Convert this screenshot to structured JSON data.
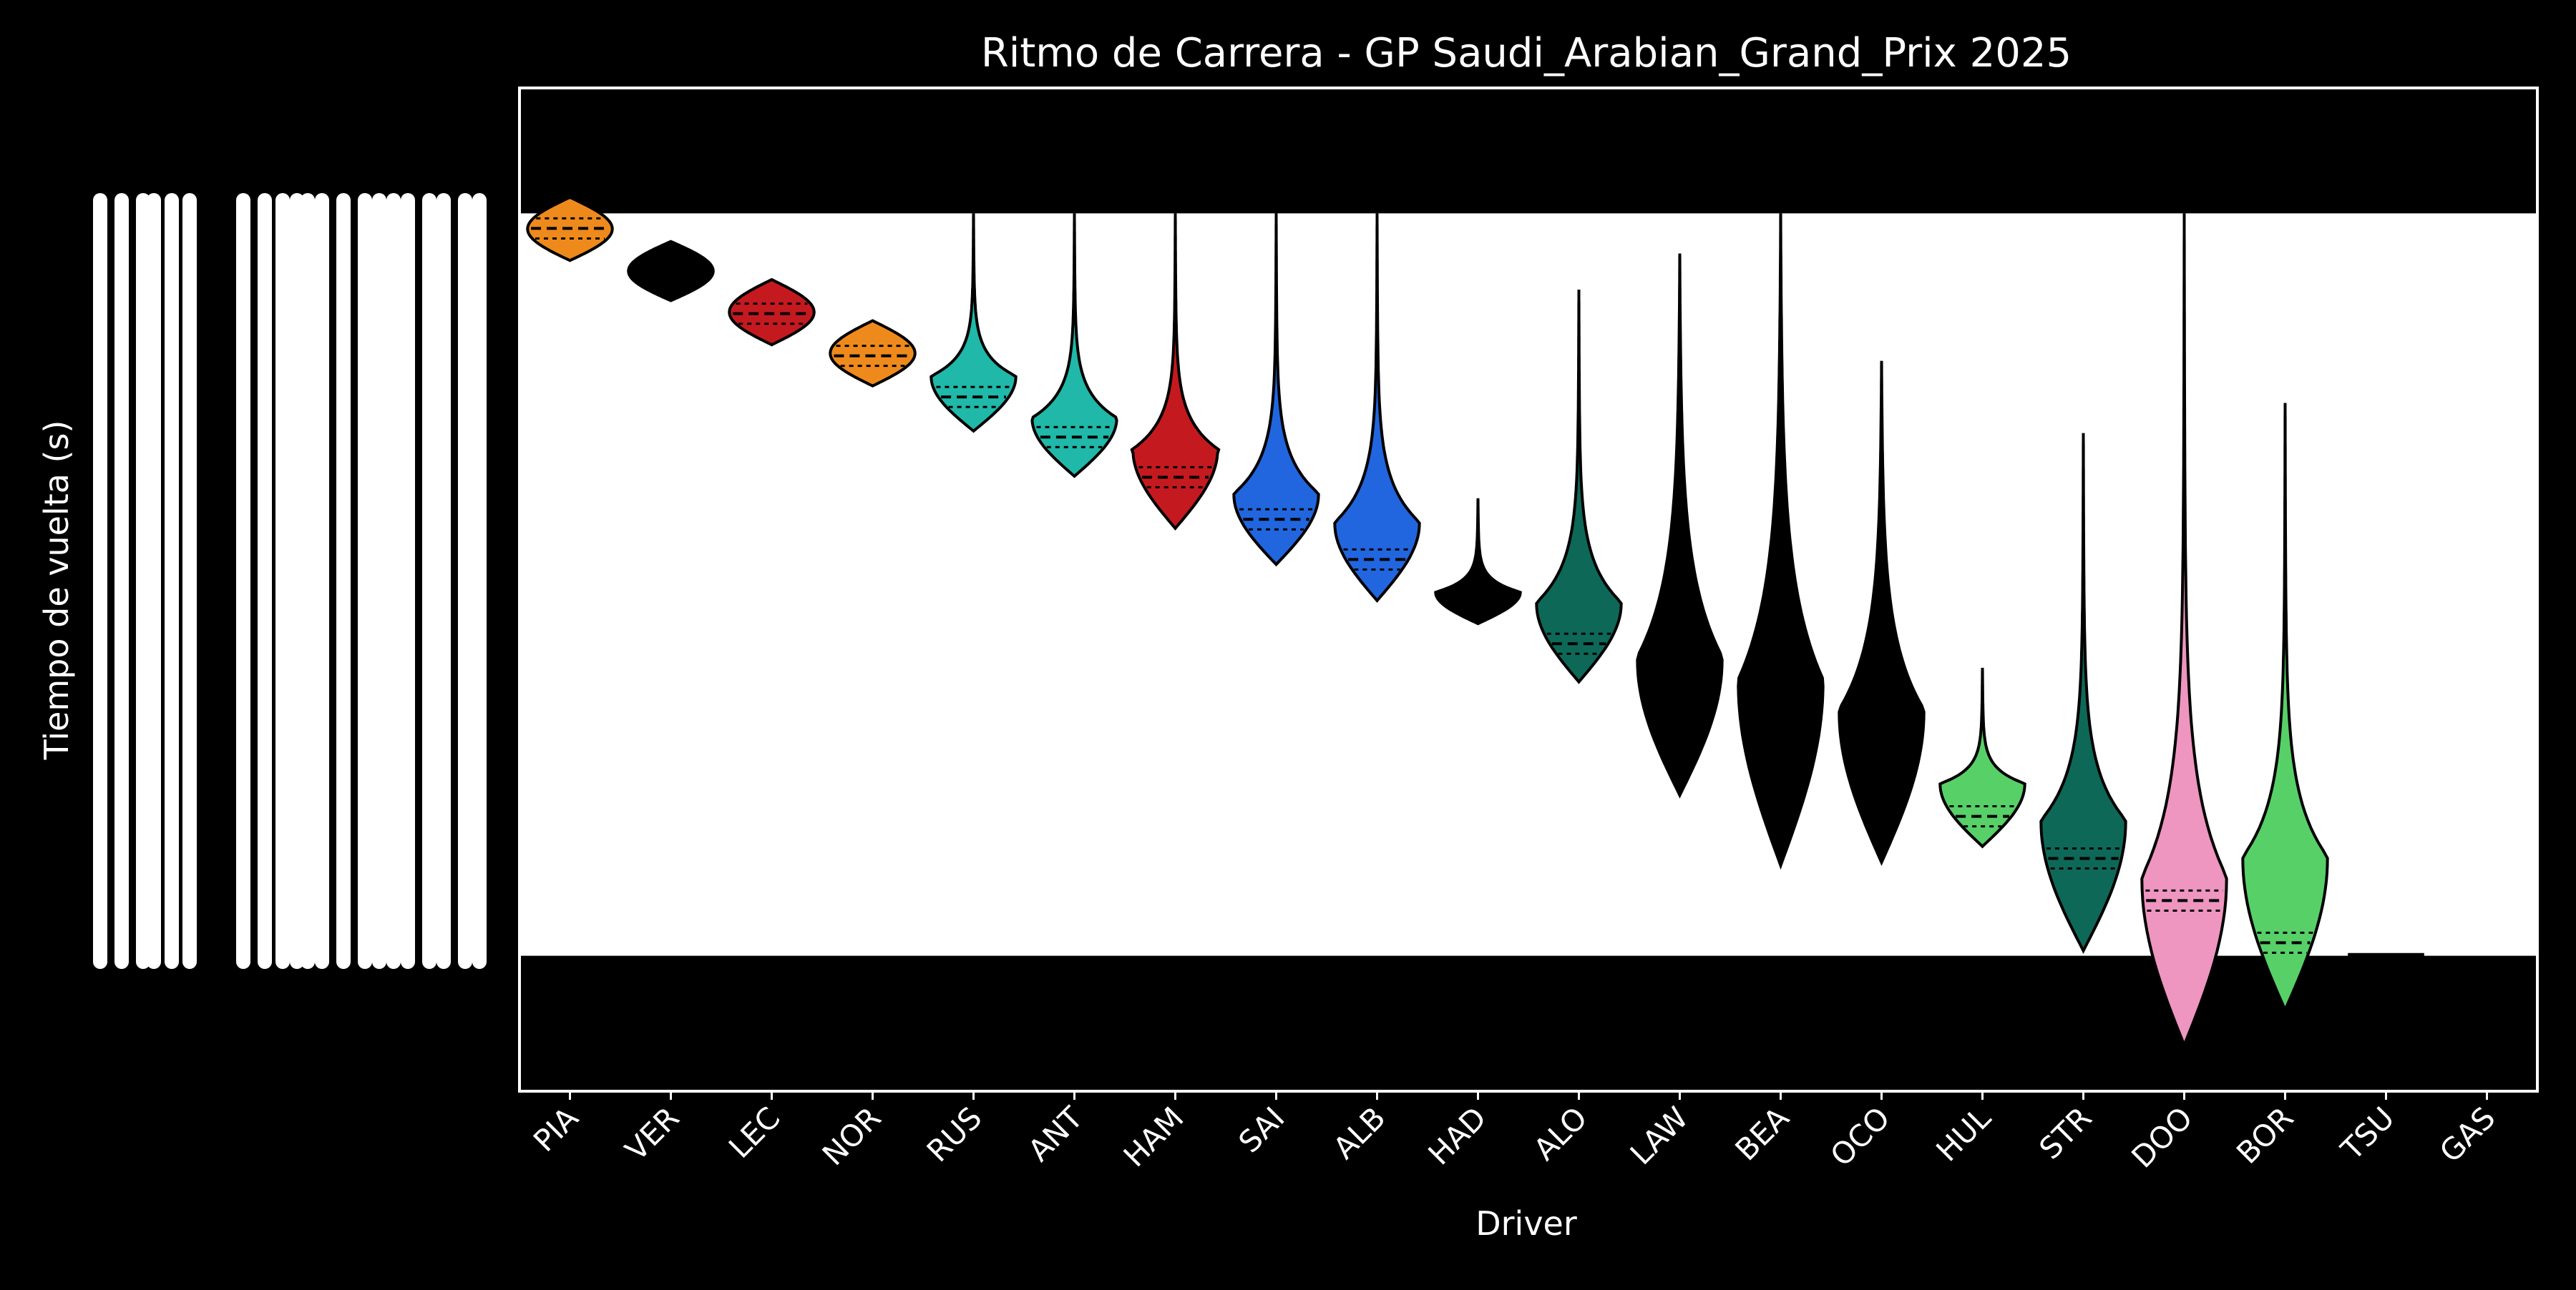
{
  "chart_data": {
    "type": "violin",
    "title": "Ritmo de Carrera - GP Saudi_Arabian_Grand_Prix 2025",
    "xlabel": "Driver",
    "ylabel": "Tiempo de vuelta (s)",
    "categories": [
      "PIA",
      "VER",
      "LEC",
      "NOR",
      "RUS",
      "ANT",
      "HAM",
      "SAI",
      "ALB",
      "HAD",
      "ALO",
      "LAW",
      "BEA",
      "OCO",
      "HUL",
      "STR",
      "DOO",
      "BOR",
      "TSU",
      "GAS"
    ],
    "ylim": [
      0,
      100
    ],
    "grid": false,
    "legend": "none",
    "white_band": [
      13.5,
      87.5
    ],
    "tick_labels_note": "y-axis tick labels are illegible (overprinted)",
    "series": [
      {
        "driver": "PIA",
        "color": "#ee8a1c",
        "center": 86.0,
        "low": 82.8,
        "high": 89.1,
        "peak": 0.55,
        "mode": 0.5,
        "tail": "none"
      },
      {
        "driver": "VER",
        "color": "#000000",
        "center": 81.8,
        "low": 78.8,
        "high": 84.7,
        "peak": 0.55,
        "mode": 0.5,
        "tail": "none"
      },
      {
        "driver": "LEC",
        "color": "#c41a1f",
        "center": 77.5,
        "low": 74.4,
        "high": 80.9,
        "peak": 0.55,
        "mode": 0.5,
        "tail": "none"
      },
      {
        "driver": "NOR",
        "color": "#ee8a1c",
        "center": 73.3,
        "low": 70.3,
        "high": 76.8,
        "peak": 0.55,
        "mode": 0.5,
        "tail": "none"
      },
      {
        "driver": "RUS",
        "color": "#20b8a8",
        "center": 69.2,
        "low": 65.8,
        "high": 87.5,
        "peak": 0.55,
        "mode": 0.25,
        "tail": "thin"
      },
      {
        "driver": "ANT",
        "color": "#20b8a8",
        "center": 65.2,
        "low": 61.3,
        "high": 87.5,
        "peak": 0.55,
        "mode": 0.22,
        "tail": "thin"
      },
      {
        "driver": "HAM",
        "color": "#c41a1f",
        "center": 61.2,
        "low": 56.1,
        "high": 87.5,
        "peak": 0.55,
        "mode": 0.25,
        "tail": "thin"
      },
      {
        "driver": "SAI",
        "color": "#2166de",
        "center": 57.0,
        "low": 52.5,
        "high": 87.5,
        "peak": 0.55,
        "mode": 0.2,
        "tail": "thin"
      },
      {
        "driver": "ALB",
        "color": "#2166de",
        "center": 53.0,
        "low": 48.9,
        "high": 87.5,
        "peak": 0.55,
        "mode": 0.2,
        "tail": "thin"
      },
      {
        "driver": "HAD",
        "color": "#000000",
        "center": 48.9,
        "low": 46.6,
        "high": 59.1,
        "peak": 0.55,
        "mode": 0.25,
        "tail": "thin"
      },
      {
        "driver": "ALO",
        "color": "#0e6858",
        "center": 44.6,
        "low": 40.8,
        "high": 79.9,
        "peak": 0.55,
        "mode": 0.2,
        "tail": "thin"
      },
      {
        "driver": "LAW",
        "color": "#000000",
        "center": 40.2,
        "low": 29.5,
        "high": 83.5,
        "peak": 0.55,
        "mode": 0.25,
        "tail": "wide"
      },
      {
        "driver": "BEA",
        "color": "#000000",
        "center": 35.9,
        "low": 22.5,
        "high": 87.5,
        "peak": 0.55,
        "mode": 0.28,
        "tail": "wide"
      },
      {
        "driver": "OCO",
        "color": "#000000",
        "center": 31.8,
        "low": 22.8,
        "high": 72.8,
        "peak": 0.55,
        "mode": 0.3,
        "tail": "wide"
      },
      {
        "driver": "HUL",
        "color": "#58d068",
        "center": 27.4,
        "low": 24.4,
        "high": 42.2,
        "peak": 0.55,
        "mode": 0.35,
        "tail": "thin"
      },
      {
        "driver": "STR",
        "color": "#0e6858",
        "center": 23.2,
        "low": 14.0,
        "high": 65.6,
        "peak": 0.55,
        "mode": 0.25,
        "tail": "thin"
      },
      {
        "driver": "DOO",
        "color": "#ee95c0",
        "center": 19.0,
        "low": 4.6,
        "high": 87.5,
        "peak": 0.55,
        "mode": 0.2,
        "tail": "thin"
      },
      {
        "driver": "BOR",
        "color": "#58d068",
        "center": 14.8,
        "low": 8.1,
        "high": 68.6,
        "peak": 0.55,
        "mode": 0.25,
        "tail": "thin"
      },
      {
        "driver": "TSU",
        "color": "#000000",
        "center": 13.6,
        "low": 13.5,
        "high": 13.7,
        "peak": 0.55,
        "mode": 0.5,
        "tail": "flat"
      },
      {
        "driver": "GAS",
        "color": "#000000",
        "center": null,
        "low": null,
        "high": null,
        "peak": 0,
        "mode": 0.5,
        "tail": "none"
      }
    ]
  }
}
